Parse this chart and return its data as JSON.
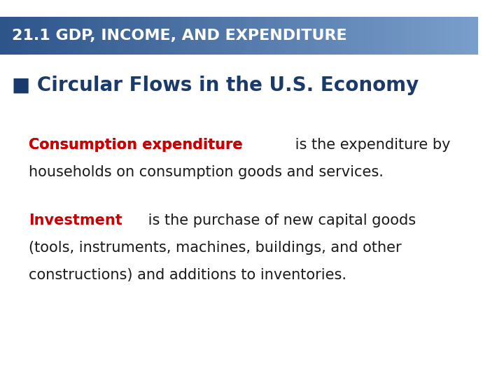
{
  "title": "21.1 GDP, INCOME, AND EXPENDITURE",
  "title_bg_color_top": "#4a6fa5",
  "title_bg_color_bottom": "#6a8fbf",
  "title_text_color": "#ffffff",
  "subtitle": "■ Circular Flows in the U.S. Economy",
  "subtitle_color": "#1a3a6b",
  "body_bg_color": "#ffffff",
  "paragraph1_bold": "Consumption expenditure",
  "paragraph1_bold_color": "#cc0000",
  "paragraph1_rest": " is the expenditure by\nhouseholds on consumption goods and services.",
  "paragraph1_rest_color": "#1a1a1a",
  "paragraph2_bold": "Investment",
  "paragraph2_bold_color": "#cc0000",
  "paragraph2_rest": " is the purchase of new capital goods\n(tools, instruments, machines, buildings, and other\nconstructions) and additions to inventories.",
  "paragraph2_rest_color": "#1a1a1a",
  "title_fontsize": 16,
  "subtitle_fontsize": 20,
  "body_fontsize": 15
}
